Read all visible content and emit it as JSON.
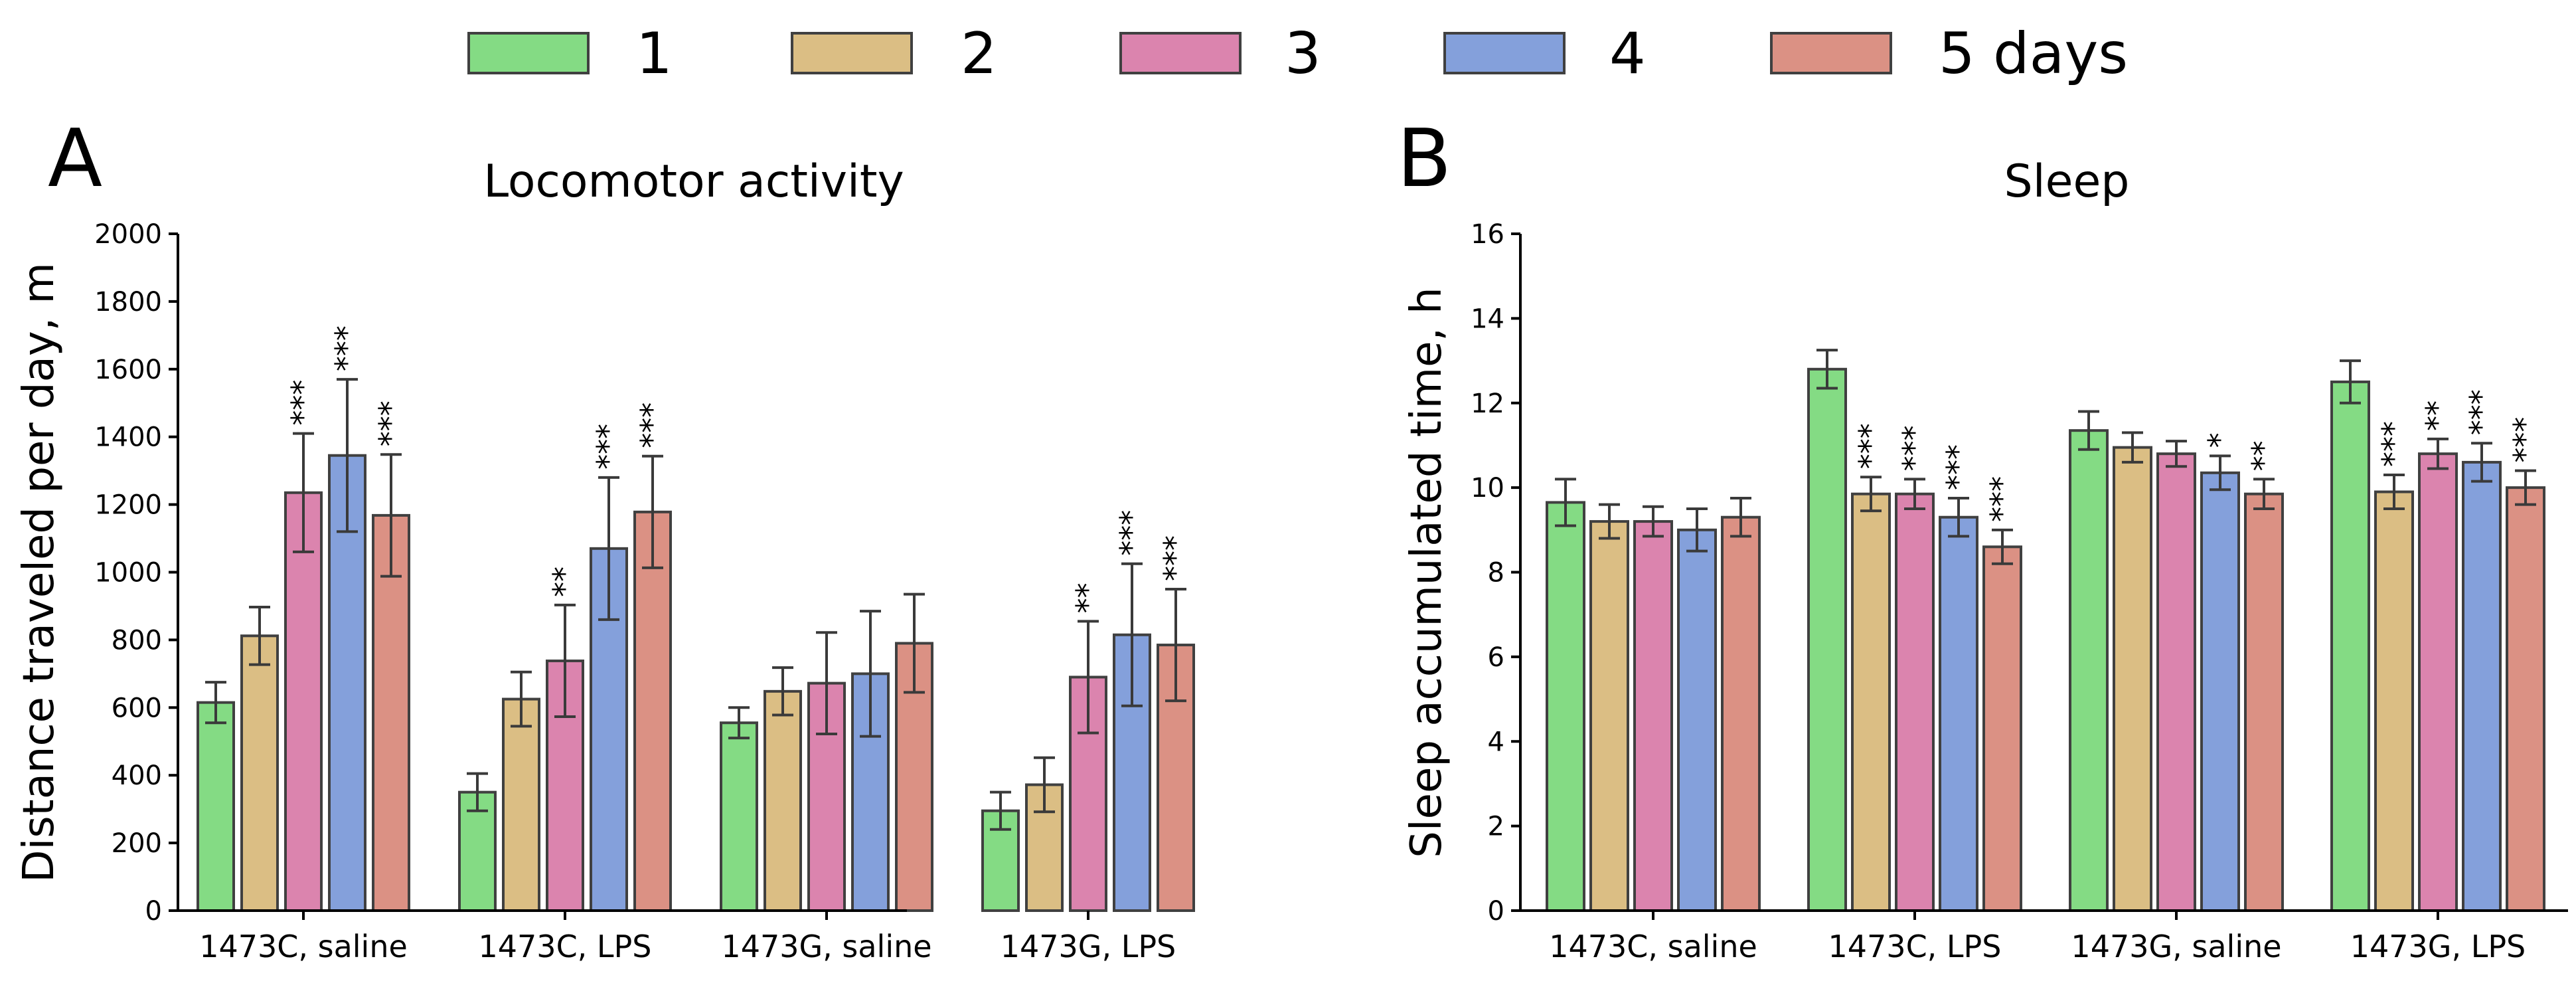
{
  "legend": {
    "entries": [
      {
        "label": "1",
        "color": "#84db84"
      },
      {
        "label": "2",
        "color": "#dbbe84"
      },
      {
        "label": "3",
        "color": "#db84ae"
      },
      {
        "label": "4",
        "color": "#84a0db"
      },
      {
        "label": "5 days",
        "color": "#db9184"
      }
    ]
  },
  "chart_data": [
    {
      "type": "bar",
      "panel": "A",
      "title": "Locomotor activity",
      "xlabel": "",
      "ylabel": "Distance traveled per day, m",
      "ylim": [
        0,
        2000
      ],
      "yticks": [
        0,
        200,
        400,
        600,
        800,
        1000,
        1200,
        1400,
        1600,
        1800,
        2000
      ],
      "grid": false,
      "categories": [
        "1473C, saline",
        "1473C, LPS",
        "1473G, saline",
        "1473G, LPS"
      ],
      "series": [
        {
          "name": "1",
          "values": [
            615,
            350,
            555,
            295
          ],
          "errors": [
            60,
            55,
            45,
            55
          ],
          "significance": [
            "",
            "",
            "",
            ""
          ]
        },
        {
          "name": "2",
          "values": [
            812,
            625,
            648,
            372
          ],
          "errors": [
            85,
            80,
            70,
            80
          ],
          "significance": [
            "",
            "",
            "",
            ""
          ]
        },
        {
          "name": "3",
          "values": [
            1235,
            738,
            672,
            690
          ],
          "errors": [
            175,
            165,
            150,
            165
          ],
          "significance": [
            "***",
            "**",
            "",
            "**"
          ]
        },
        {
          "name": "4",
          "values": [
            1345,
            1070,
            700,
            815
          ],
          "errors": [
            225,
            210,
            185,
            210
          ],
          "significance": [
            "***",
            "***",
            "",
            "***"
          ]
        },
        {
          "name": "5 days",
          "values": [
            1168,
            1178,
            790,
            785
          ],
          "errors": [
            180,
            165,
            145,
            165
          ],
          "significance": [
            "***",
            "***",
            "",
            "***"
          ]
        }
      ]
    },
    {
      "type": "bar",
      "panel": "B",
      "title": "Sleep",
      "xlabel": "",
      "ylabel": "Sleep accumulated time, h",
      "ylim": [
        0,
        16
      ],
      "yticks": [
        0,
        2,
        4,
        6,
        8,
        10,
        12,
        14,
        16
      ],
      "grid": false,
      "categories": [
        "1473C, saline",
        "1473C, LPS",
        "1473G, saline",
        "1473G, LPS"
      ],
      "series": [
        {
          "name": "1",
          "values": [
            9.65,
            12.8,
            11.35,
            12.5
          ],
          "errors": [
            0.55,
            0.45,
            0.45,
            0.5
          ],
          "significance": [
            "",
            "",
            "",
            ""
          ]
        },
        {
          "name": "2",
          "values": [
            9.2,
            9.85,
            10.95,
            9.9
          ],
          "errors": [
            0.4,
            0.4,
            0.35,
            0.4
          ],
          "significance": [
            "",
            "***",
            "",
            "***"
          ]
        },
        {
          "name": "3",
          "values": [
            9.2,
            9.85,
            10.8,
            10.8
          ],
          "errors": [
            0.35,
            0.35,
            0.3,
            0.35
          ],
          "significance": [
            "",
            "***",
            "",
            "**"
          ]
        },
        {
          "name": "4",
          "values": [
            9.0,
            9.3,
            10.35,
            10.6
          ],
          "errors": [
            0.5,
            0.45,
            0.4,
            0.45
          ],
          "significance": [
            "",
            "***",
            "*",
            "***"
          ]
        },
        {
          "name": "5 days",
          "values": [
            9.3,
            8.6,
            9.85,
            10.0
          ],
          "errors": [
            0.45,
            0.4,
            0.35,
            0.4
          ],
          "significance": [
            "",
            "***",
            "**",
            "***"
          ]
        }
      ]
    }
  ]
}
